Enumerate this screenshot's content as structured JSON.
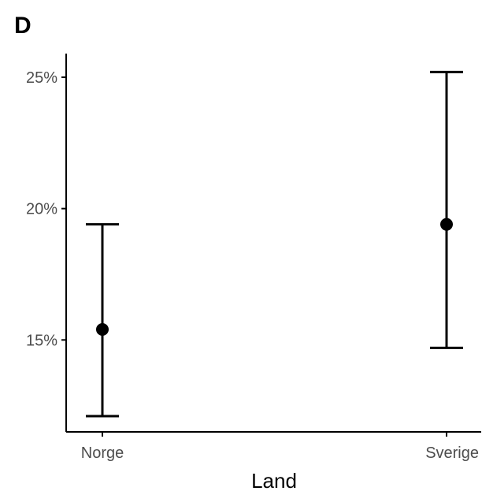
{
  "panel_label": "D",
  "chart_data": {
    "type": "scatter",
    "title": "",
    "xlabel": "Land",
    "ylabel": "",
    "categories": [
      "Norge",
      "Sverige"
    ],
    "values": [
      15.4,
      19.4
    ],
    "error_low": [
      12.1,
      14.7
    ],
    "error_high": [
      19.4,
      25.2
    ],
    "ylim": [
      11.5,
      25.9
    ],
    "yticks": [
      15,
      20,
      25
    ],
    "ytick_labels": [
      "15%",
      "20%",
      "25%"
    ],
    "grid": false,
    "legend": "none",
    "colors": {
      "mark": "#000000",
      "axis": "#000000",
      "tick_text": "#4d4d4d"
    }
  }
}
